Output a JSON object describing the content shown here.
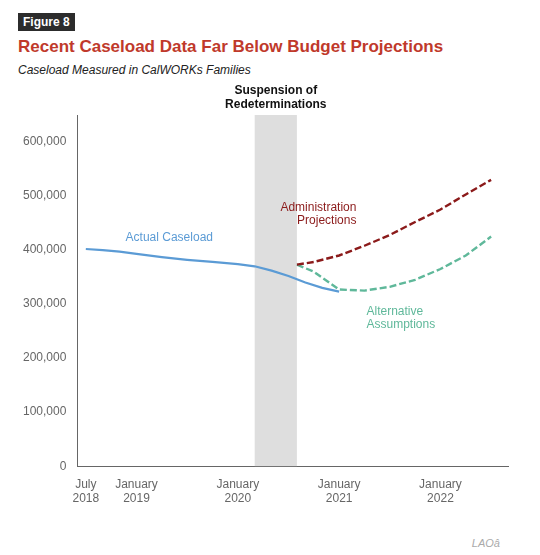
{
  "chart_data": {
    "type": "line",
    "figure_label": "Figure 8",
    "title": "Recent Caseload Data Far Below Budget Projections",
    "title_color": "#c0392b",
    "subtitle": "Caseload Measured in CalWORKs Families",
    "series": [
      {
        "name": "Actual Caseload",
        "color": "#5b9bd5",
        "line_style": "solid",
        "x": [
          0,
          2,
          4,
          6,
          9,
          12,
          15,
          18,
          20,
          22,
          24,
          26,
          28,
          30
        ],
        "values": [
          402000,
          400000,
          397000,
          393000,
          387000,
          382000,
          378000,
          374000,
          370000,
          362000,
          352000,
          340000,
          330000,
          323000
        ]
      },
      {
        "name": "Administration\nProjections",
        "color": "#8b1a1a",
        "line_style": "dashed",
        "x": [
          25,
          27,
          30,
          33,
          36,
          39,
          42,
          45,
          48
        ],
        "values": [
          373000,
          378000,
          390000,
          408000,
          428000,
          452000,
          475000,
          503000,
          530000
        ]
      },
      {
        "name": "Alternative\nAssumptions",
        "color": "#5fb89a",
        "line_style": "dashed",
        "x": [
          25,
          27,
          30,
          33,
          36,
          39,
          42,
          45,
          48
        ],
        "values": [
          373000,
          360000,
          327000,
          325000,
          332000,
          345000,
          365000,
          390000,
          425000
        ]
      }
    ],
    "annotations": [
      {
        "text": "Suspension of\nRedeterminations",
        "x_span": [
          20,
          25
        ]
      }
    ],
    "watermark": "LAOâ",
    "xlim": [
      -1,
      50
    ],
    "xticks": [
      {
        "value": 0,
        "label": "July\n2018"
      },
      {
        "value": 6,
        "label": "January\n2019"
      },
      {
        "value": 18,
        "label": "January\n2020"
      },
      {
        "value": 30,
        "label": "January\n2021"
      },
      {
        "value": 42,
        "label": "January\n2022"
      }
    ],
    "ylim": [
      0,
      650000
    ],
    "yticks": [
      0,
      {
        "value": 100000,
        "label": "100,000"
      },
      {
        "value": 200000,
        "label": "200,000"
      },
      {
        "value": 300000,
        "label": "300,000"
      },
      {
        "value": 400000,
        "label": "400,000"
      },
      {
        "value": 500000,
        "label": "500,000"
      },
      {
        "value": 600000,
        "label": "600,000"
      }
    ],
    "grid": false
  }
}
